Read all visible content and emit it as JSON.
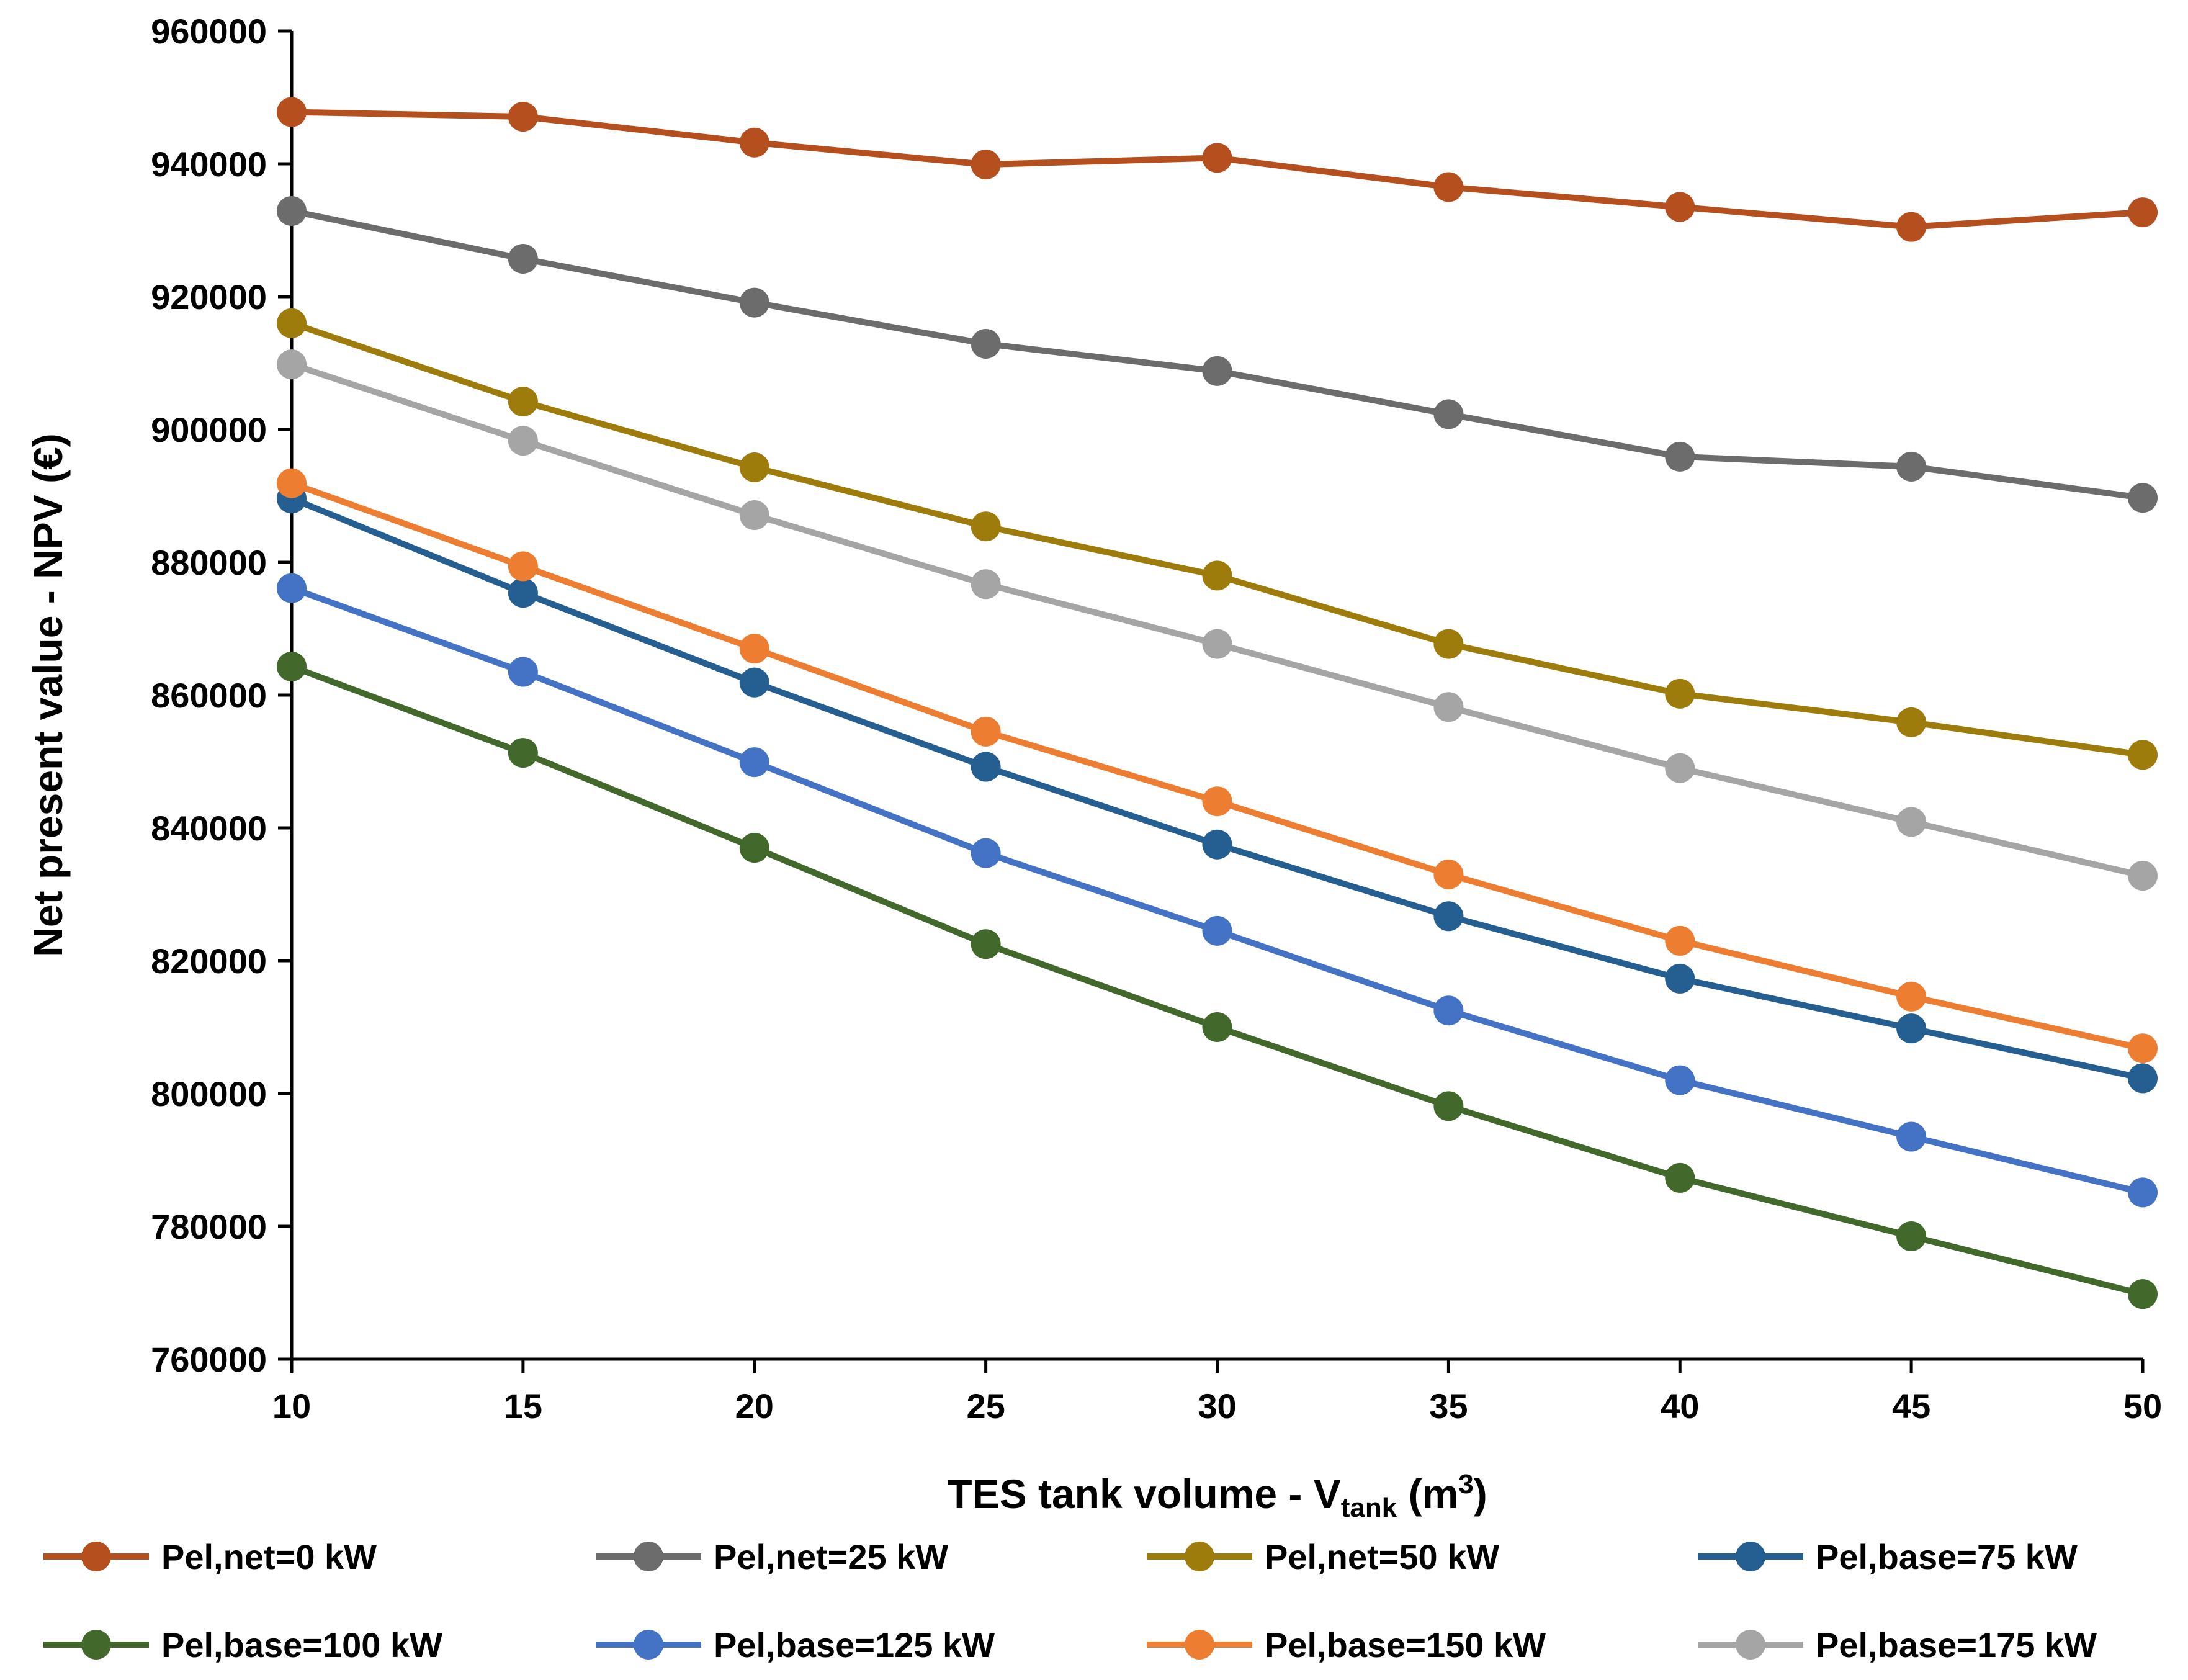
{
  "chart_data": {
    "type": "line",
    "title": "",
    "xlabel": {
      "main": "TES tank volume - V",
      "subscript": "tank",
      "unit_open": " (m",
      "superscript": "3",
      "unit_close": ")"
    },
    "ylabel": "Net present value - NPV (€)",
    "x": [
      10,
      15,
      20,
      25,
      30,
      35,
      40,
      45,
      50
    ],
    "x_tick_labels": [
      "10",
      "15",
      "20",
      "25",
      "30",
      "35",
      "40",
      "45",
      "50"
    ],
    "xlim": [
      10,
      50
    ],
    "ylim": [
      760000,
      960000
    ],
    "y_ticks": [
      760000,
      780000,
      800000,
      820000,
      840000,
      860000,
      880000,
      900000,
      920000,
      940000,
      960000
    ],
    "y_tick_labels": [
      "760000",
      "780000",
      "800000",
      "820000",
      "840000",
      "860000",
      "880000",
      "900000",
      "920000",
      "940000",
      "960000"
    ],
    "grid": false,
    "legend_position": "bottom",
    "series": [
      {
        "name": "Pel,net=0 kW",
        "color": "#B5501E",
        "values": [
          947800,
          947100,
          943200,
          939900,
          940900,
          936500,
          933500,
          930500,
          932700
        ]
      },
      {
        "name": "Pel,net=25 kW",
        "color": "#6C6C6C",
        "values": [
          932900,
          925700,
          919100,
          912900,
          908800,
          902300,
          895900,
          894400,
          889700
        ]
      },
      {
        "name": "Pel,net=50 kW",
        "color": "#9E7C0C",
        "values": [
          916000,
          904200,
          894300,
          885400,
          878000,
          867700,
          860200,
          855900,
          851000
        ]
      },
      {
        "name": "Pel,base=75 kW",
        "color": "#255E91",
        "values": [
          889600,
          875400,
          861900,
          849200,
          837500,
          826700,
          817300,
          809800,
          802300
        ]
      },
      {
        "name": "Pel,base=100 kW",
        "color": "#43682B",
        "values": [
          864300,
          851300,
          837000,
          822500,
          810000,
          798100,
          787300,
          778500,
          769800
        ]
      },
      {
        "name": "Pel,base=125 kW",
        "color": "#4472C4",
        "values": [
          876100,
          863500,
          849900,
          836200,
          824500,
          812500,
          802000,
          793500,
          785100
        ]
      },
      {
        "name": "Pel,base=150 kW",
        "color": "#ED7D31",
        "values": [
          891900,
          879400,
          867000,
          854500,
          844000,
          833000,
          823000,
          814600,
          806800
        ]
      },
      {
        "name": "Pel,base=175 kW",
        "color": "#A5A5A5",
        "values": [
          909800,
          898300,
          887100,
          876700,
          867700,
          858200,
          849000,
          840900,
          832800
        ]
      }
    ]
  }
}
